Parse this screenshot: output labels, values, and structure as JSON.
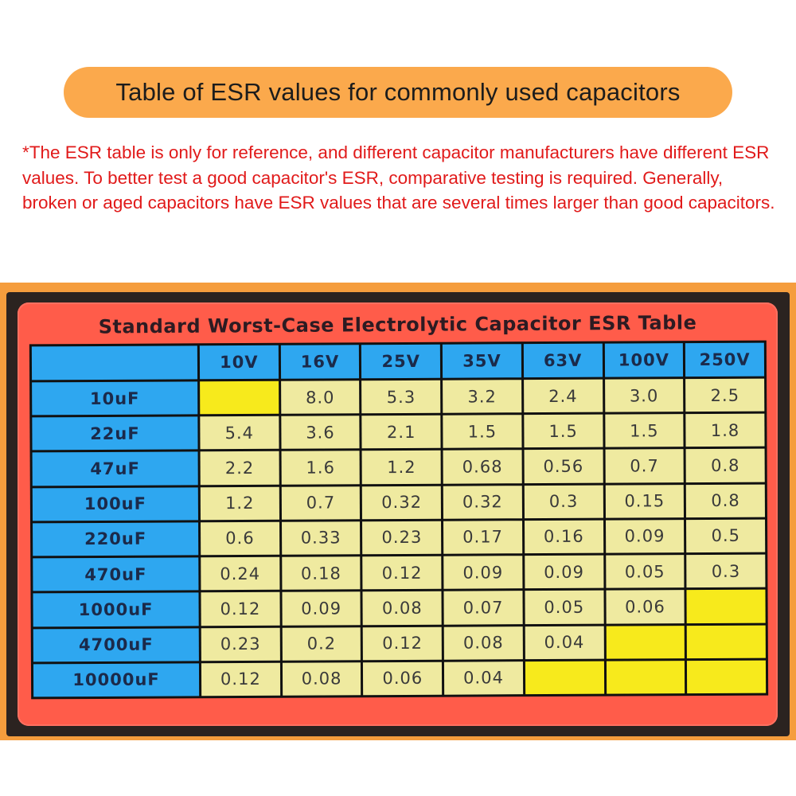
{
  "heading": "Table of ESR values for commonly used capacitors",
  "note": "*The ESR table is only for reference, and different capacitor manufacturers have different ESR values. To better test a good capacitor's ESR, comparative testing is required. Generally, broken or aged capacitors have ESR values that are several times larger than good capacitors.",
  "colors": {
    "pill": "#fba94c",
    "note_text": "#e11a1a",
    "label_red": "#ff5c4a",
    "header_blue": "#2ea7f0",
    "cell_cream": "#efeaa0",
    "cell_yellow": "#f7ea1c"
  },
  "table": {
    "title": "Standard Worst-Case Electrolytic Capacitor ESR Table",
    "voltages": [
      "10V",
      "16V",
      "25V",
      "35V",
      "63V",
      "100V",
      "250V"
    ],
    "rows": [
      {
        "cap": "10uF",
        "values": [
          "",
          "8.0",
          "5.3",
          "3.2",
          "2.4",
          "3.0",
          "2.5"
        ]
      },
      {
        "cap": "22uF",
        "values": [
          "5.4",
          "3.6",
          "2.1",
          "1.5",
          "1.5",
          "1.5",
          "1.8"
        ]
      },
      {
        "cap": "47uF",
        "values": [
          "2.2",
          "1.6",
          "1.2",
          "0.68",
          "0.56",
          "0.7",
          "0.8"
        ]
      },
      {
        "cap": "100uF",
        "values": [
          "1.2",
          "0.7",
          "0.32",
          "0.32",
          "0.3",
          "0.15",
          "0.8"
        ]
      },
      {
        "cap": "220uF",
        "values": [
          "0.6",
          "0.33",
          "0.23",
          "0.17",
          "0.16",
          "0.09",
          "0.5"
        ]
      },
      {
        "cap": "470uF",
        "values": [
          "0.24",
          "0.18",
          "0.12",
          "0.09",
          "0.09",
          "0.05",
          "0.3"
        ]
      },
      {
        "cap": "1000uF",
        "values": [
          "0.12",
          "0.09",
          "0.08",
          "0.07",
          "0.05",
          "0.06",
          ""
        ]
      },
      {
        "cap": "4700uF",
        "values": [
          "0.23",
          "0.2",
          "0.12",
          "0.08",
          "0.04",
          "",
          ""
        ]
      },
      {
        "cap": "10000uF",
        "values": [
          "0.12",
          "0.08",
          "0.06",
          "0.04",
          "",
          "",
          ""
        ]
      }
    ]
  }
}
